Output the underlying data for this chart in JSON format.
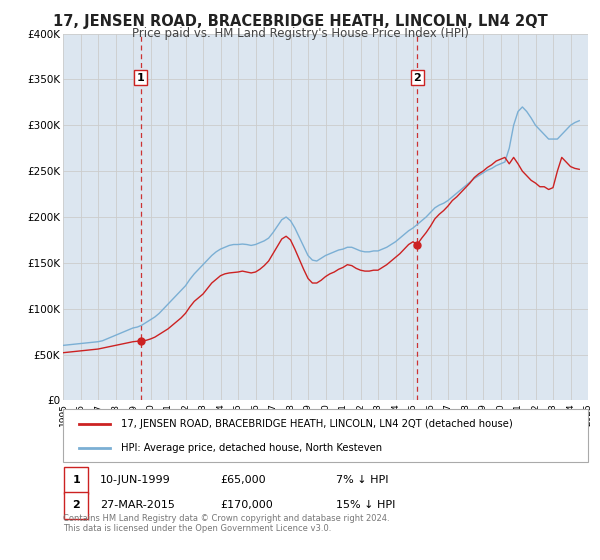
{
  "title": "17, JENSEN ROAD, BRACEBRIDGE HEATH, LINCOLN, LN4 2QT",
  "subtitle": "Price paid vs. HM Land Registry's House Price Index (HPI)",
  "title_fontsize": 10.5,
  "subtitle_fontsize": 8.5,
  "xlim": [
    1995,
    2025
  ],
  "ylim": [
    0,
    400000
  ],
  "yticks": [
    0,
    50000,
    100000,
    150000,
    200000,
    250000,
    300000,
    350000,
    400000
  ],
  "ytick_labels": [
    "£0",
    "£50K",
    "£100K",
    "£150K",
    "£200K",
    "£250K",
    "£300K",
    "£350K",
    "£400K"
  ],
  "xticks": [
    1995,
    1996,
    1997,
    1998,
    1999,
    2000,
    2001,
    2002,
    2003,
    2004,
    2005,
    2006,
    2007,
    2008,
    2009,
    2010,
    2011,
    2012,
    2013,
    2014,
    2015,
    2016,
    2017,
    2018,
    2019,
    2020,
    2021,
    2022,
    2023,
    2024,
    2025
  ],
  "grid_color": "#cccccc",
  "bg_color": "#dce6f0",
  "hpi_color": "#7bafd4",
  "price_color": "#cc2222",
  "sale1_x": 1999.44,
  "sale1_y": 65000,
  "sale2_x": 2015.24,
  "sale2_y": 170000,
  "vline_color": "#cc3333",
  "marker_color": "#cc2222",
  "legend_label_price": "17, JENSEN ROAD, BRACEBRIDGE HEATH, LINCOLN, LN4 2QT (detached house)",
  "legend_label_hpi": "HPI: Average price, detached house, North Kesteven",
  "table_row1": [
    "1",
    "10-JUN-1999",
    "£65,000",
    "7% ↓ HPI"
  ],
  "table_row2": [
    "2",
    "27-MAR-2015",
    "£170,000",
    "15% ↓ HPI"
  ],
  "footer": "Contains HM Land Registry data © Crown copyright and database right 2024.\nThis data is licensed under the Open Government Licence v3.0.",
  "hpi_data_x": [
    1995.0,
    1995.25,
    1995.5,
    1995.75,
    1996.0,
    1996.25,
    1996.5,
    1996.75,
    1997.0,
    1997.25,
    1997.5,
    1997.75,
    1998.0,
    1998.25,
    1998.5,
    1998.75,
    1999.0,
    1999.25,
    1999.5,
    1999.75,
    2000.0,
    2000.25,
    2000.5,
    2000.75,
    2001.0,
    2001.25,
    2001.5,
    2001.75,
    2002.0,
    2002.25,
    2002.5,
    2002.75,
    2003.0,
    2003.25,
    2003.5,
    2003.75,
    2004.0,
    2004.25,
    2004.5,
    2004.75,
    2005.0,
    2005.25,
    2005.5,
    2005.75,
    2006.0,
    2006.25,
    2006.5,
    2006.75,
    2007.0,
    2007.25,
    2007.5,
    2007.75,
    2008.0,
    2008.25,
    2008.5,
    2008.75,
    2009.0,
    2009.25,
    2009.5,
    2009.75,
    2010.0,
    2010.25,
    2010.5,
    2010.75,
    2011.0,
    2011.25,
    2011.5,
    2011.75,
    2012.0,
    2012.25,
    2012.5,
    2012.75,
    2013.0,
    2013.25,
    2013.5,
    2013.75,
    2014.0,
    2014.25,
    2014.5,
    2014.75,
    2015.0,
    2015.25,
    2015.5,
    2015.75,
    2016.0,
    2016.25,
    2016.5,
    2016.75,
    2017.0,
    2017.25,
    2017.5,
    2017.75,
    2018.0,
    2018.25,
    2018.5,
    2018.75,
    2019.0,
    2019.25,
    2019.5,
    2019.75,
    2020.0,
    2020.25,
    2020.5,
    2020.75,
    2021.0,
    2021.25,
    2021.5,
    2021.75,
    2022.0,
    2022.25,
    2022.5,
    2022.75,
    2023.0,
    2023.25,
    2023.5,
    2023.75,
    2024.0,
    2024.25,
    2024.5
  ],
  "hpi_data_y": [
    60000,
    60500,
    61000,
    61500,
    62000,
    62500,
    63000,
    63500,
    64000,
    65000,
    67000,
    69000,
    71000,
    73000,
    75000,
    77000,
    79000,
    80000,
    82000,
    85000,
    88000,
    91000,
    95000,
    100000,
    105000,
    110000,
    115000,
    120000,
    125000,
    132000,
    138000,
    143000,
    148000,
    153000,
    158000,
    162000,
    165000,
    167000,
    169000,
    170000,
    170000,
    170500,
    170000,
    169000,
    170000,
    172000,
    174000,
    177000,
    183000,
    190000,
    197000,
    200000,
    196000,
    188000,
    178000,
    168000,
    158000,
    153000,
    152000,
    155000,
    158000,
    160000,
    162000,
    164000,
    165000,
    167000,
    167000,
    165000,
    163000,
    162000,
    162000,
    163000,
    163000,
    165000,
    167000,
    170000,
    173000,
    177000,
    181000,
    185000,
    188000,
    192000,
    196000,
    200000,
    205000,
    210000,
    213000,
    215000,
    218000,
    222000,
    226000,
    230000,
    234000,
    238000,
    242000,
    245000,
    248000,
    251000,
    253000,
    256000,
    258000,
    260000,
    275000,
    300000,
    315000,
    320000,
    315000,
    308000,
    300000,
    295000,
    290000,
    285000,
    285000,
    285000,
    290000,
    295000,
    300000,
    303000,
    305000
  ],
  "price_data_x": [
    1995.0,
    1995.25,
    1995.5,
    1995.75,
    1996.0,
    1996.25,
    1996.5,
    1996.75,
    1997.0,
    1997.25,
    1997.5,
    1997.75,
    1998.0,
    1998.25,
    1998.5,
    1998.75,
    1999.0,
    1999.25,
    1999.44,
    1999.75,
    2000.0,
    2000.25,
    2000.5,
    2000.75,
    2001.0,
    2001.25,
    2001.5,
    2001.75,
    2002.0,
    2002.25,
    2002.5,
    2002.75,
    2003.0,
    2003.25,
    2003.5,
    2003.75,
    2004.0,
    2004.25,
    2004.5,
    2004.75,
    2005.0,
    2005.25,
    2005.5,
    2005.75,
    2006.0,
    2006.25,
    2006.5,
    2006.75,
    2007.0,
    2007.25,
    2007.5,
    2007.75,
    2008.0,
    2008.25,
    2008.5,
    2008.75,
    2009.0,
    2009.25,
    2009.5,
    2009.75,
    2010.0,
    2010.25,
    2010.5,
    2010.75,
    2011.0,
    2011.25,
    2011.5,
    2011.75,
    2012.0,
    2012.25,
    2012.5,
    2012.75,
    2013.0,
    2013.25,
    2013.5,
    2013.75,
    2014.0,
    2014.25,
    2014.5,
    2014.75,
    2015.0,
    2015.24,
    2015.5,
    2015.75,
    2016.0,
    2016.25,
    2016.5,
    2016.75,
    2017.0,
    2017.25,
    2017.5,
    2017.75,
    2018.0,
    2018.25,
    2018.5,
    2018.75,
    2019.0,
    2019.25,
    2019.5,
    2019.75,
    2020.0,
    2020.25,
    2020.5,
    2020.75,
    2021.0,
    2021.25,
    2021.5,
    2021.75,
    2022.0,
    2022.25,
    2022.5,
    2022.75,
    2023.0,
    2023.25,
    2023.5,
    2023.75,
    2024.0,
    2024.25,
    2024.5
  ],
  "price_data_y": [
    52000,
    52500,
    53000,
    53500,
    54000,
    54500,
    55000,
    55500,
    56000,
    57000,
    58000,
    59000,
    60000,
    61000,
    62000,
    63000,
    64000,
    64500,
    65000,
    65500,
    67000,
    69000,
    72000,
    75000,
    78000,
    82000,
    86000,
    90000,
    95000,
    102000,
    108000,
    112000,
    116000,
    122000,
    128000,
    132000,
    136000,
    138000,
    139000,
    139500,
    140000,
    141000,
    140000,
    139000,
    140000,
    143000,
    147000,
    152000,
    160000,
    168000,
    176000,
    179000,
    175000,
    165000,
    154000,
    143000,
    133000,
    128000,
    128000,
    131000,
    135000,
    138000,
    140000,
    143000,
    145000,
    148000,
    147000,
    144000,
    142000,
    141000,
    141000,
    142000,
    142000,
    145000,
    148000,
    152000,
    156000,
    160000,
    165000,
    170000,
    173000,
    170000,
    177000,
    183000,
    190000,
    198000,
    203000,
    207000,
    212000,
    218000,
    222000,
    227000,
    232000,
    237000,
    243000,
    247000,
    250000,
    254000,
    257000,
    261000,
    263000,
    265000,
    258000,
    265000,
    258000,
    250000,
    245000,
    240000,
    237000,
    233000,
    233000,
    230000,
    232000,
    250000,
    265000,
    260000,
    255000,
    253000,
    252000
  ]
}
